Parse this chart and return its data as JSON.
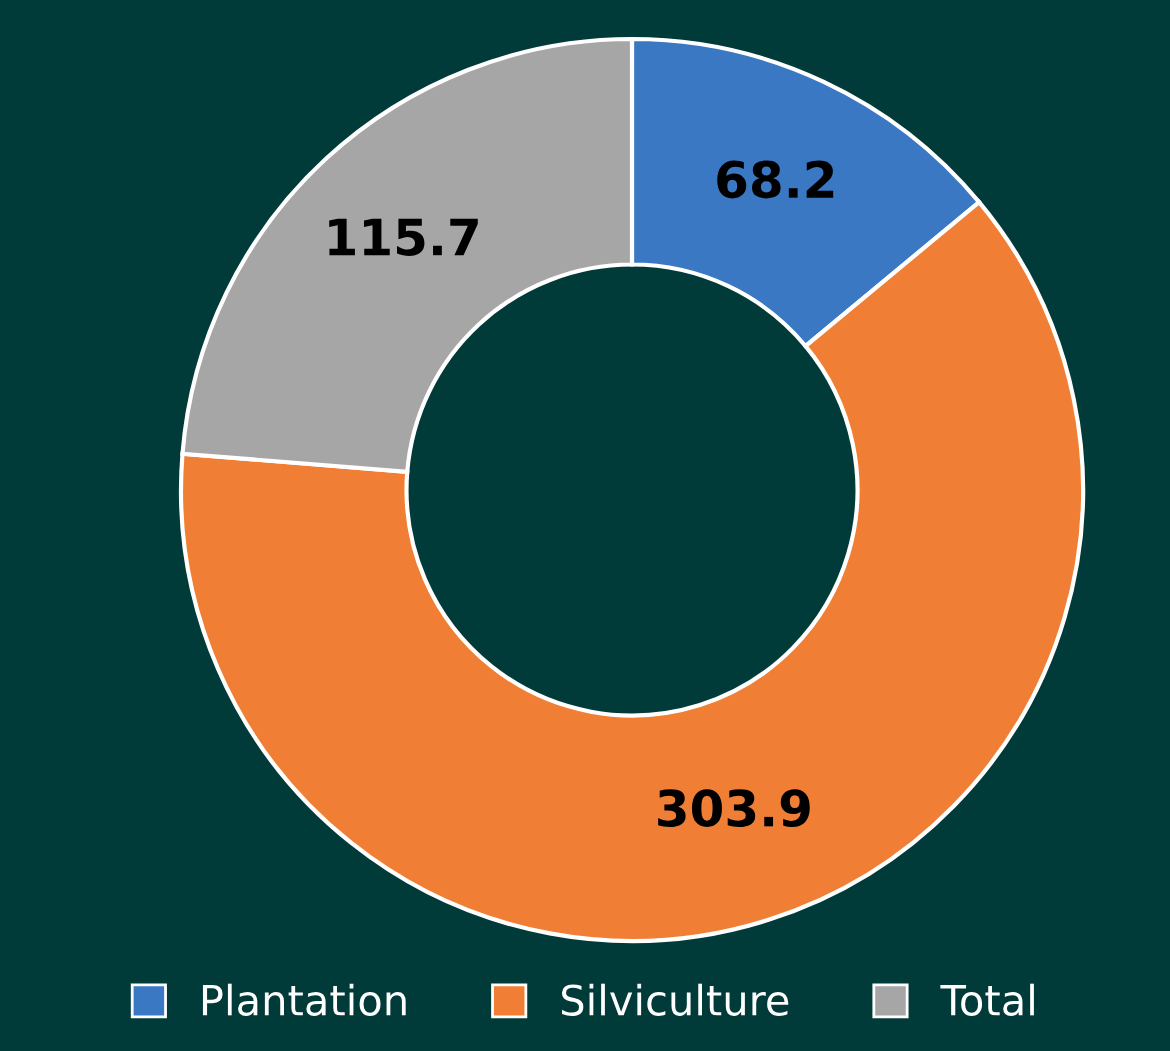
{
  "chart_data": {
    "type": "donut",
    "categories": [
      "Plantation",
      "Silviculture",
      "Total"
    ],
    "values": [
      68.2,
      303.9,
      115.7
    ],
    "colors": [
      "#3a78c4",
      "#f07f35",
      "#a6a6a6"
    ],
    "data_labels": true,
    "legend": "bottom"
  }
}
